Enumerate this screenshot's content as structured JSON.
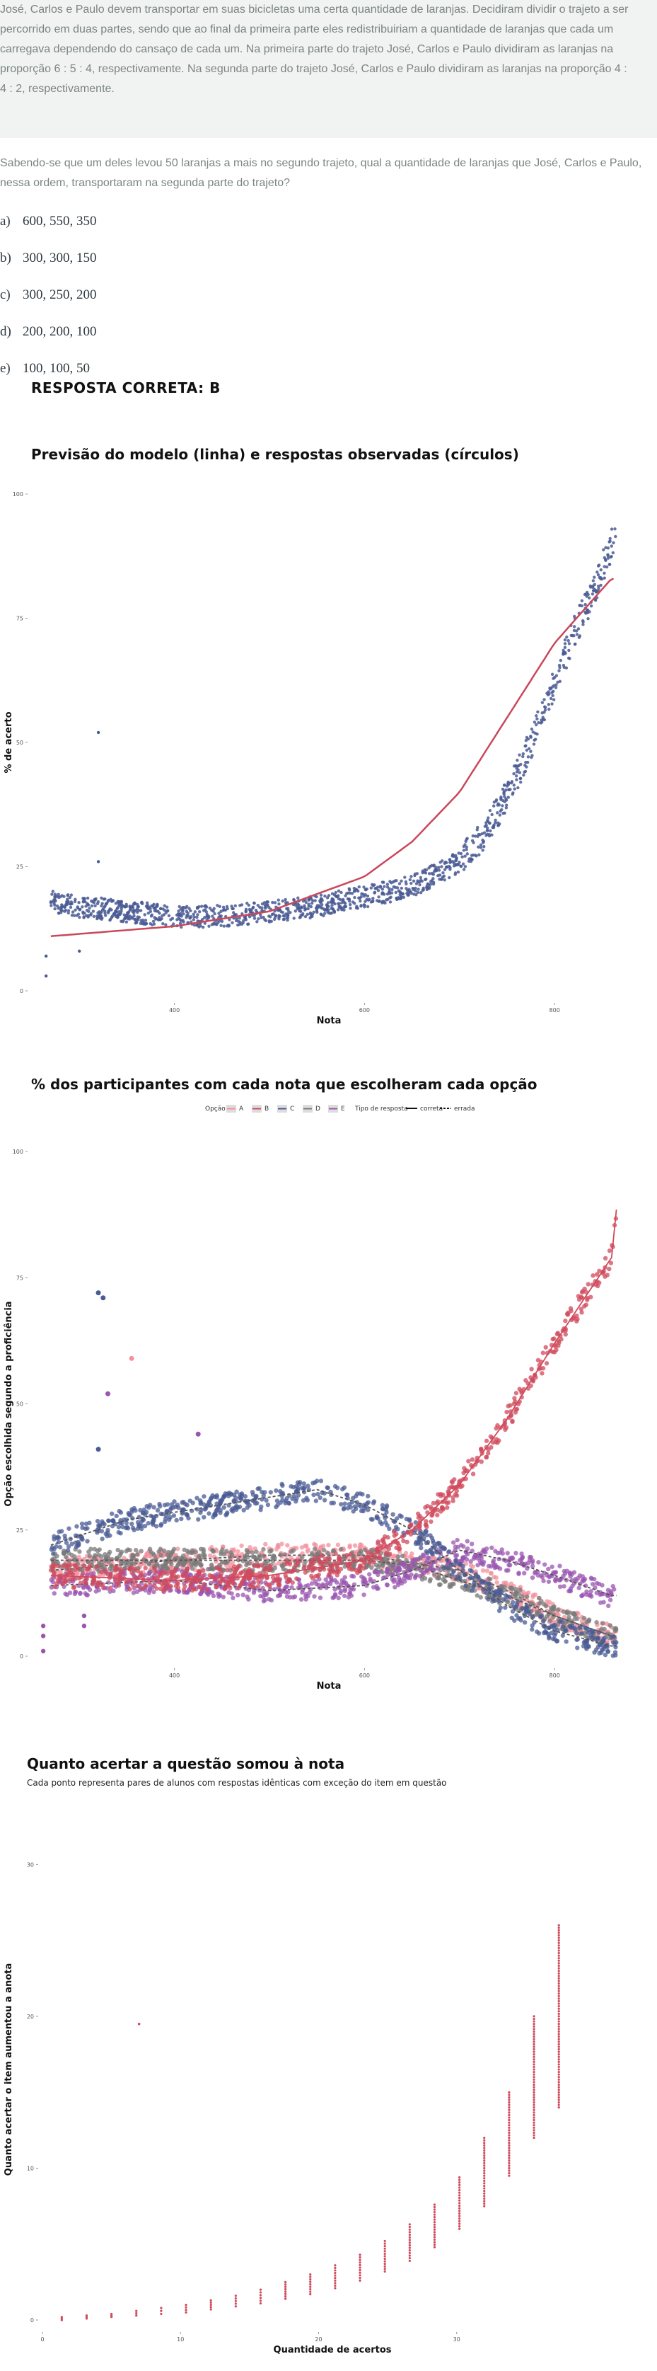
{
  "passage": "José, Carlos e Paulo devem transportar em suas bicicletas uma certa quantidade de laranjas. Decidiram dividir o trajeto a ser percorrido em duas partes, sendo que ao final da primeira parte eles redistribuiriam a quantidade de laranjas que cada um carregava dependendo do cansaço de cada um. Na primeira parte do trajeto José, Carlos e Paulo dividiram as laranjas na proporção 6 : 5 : 4, respectivamente. Na segunda parte do trajeto José, Carlos e Paulo dividiram as laranjas na proporção 4 : 4 : 2, respectivamente.",
  "question": "Sabendo-se que um deles levou 50 laranjas a mais no segundo trajeto, qual a quantidade de laranjas que José, Carlos e Paulo, nessa ordem, transportaram na segunda parte do trajeto?",
  "alternatives": [
    {
      "letter": "a)",
      "text": "600, 550, 350"
    },
    {
      "letter": "b)",
      "text": "300, 300, 150"
    },
    {
      "letter": "c)",
      "text": "300, 250, 200"
    },
    {
      "letter": "d)",
      "text": "200, 200, 100"
    },
    {
      "letter": "e)",
      "text": "100, 100, 50"
    }
  ],
  "correct_answer": "RESPOSTA CORRETA: B",
  "colors": {
    "model_line": "#c9485b",
    "observed": "#4a5b94",
    "A": "#f2909c",
    "B": "#d04a5c",
    "C": "#4a5b94",
    "D": "#7a7a7a",
    "E": "#9a55b0"
  },
  "chart_data": [
    {
      "type": "scatter",
      "title": "Previsão do modelo (linha) e respostas observadas (círculos)",
      "xlabel": "Nota",
      "ylabel": "% de acerto",
      "x_ticks": [
        "400",
        "600",
        "800"
      ],
      "y_ticks": [
        "0",
        "25",
        "50",
        "75",
        "100"
      ],
      "xlim": [
        250,
        875
      ],
      "ylim": [
        0,
        100
      ],
      "series": [
        {
          "kind": "line",
          "points": [
            [
              270,
              11
            ],
            [
              400,
              13
            ],
            [
              500,
              16
            ],
            [
              600,
              23
            ],
            [
              650,
              30
            ],
            [
              700,
              40
            ],
            [
              750,
              55
            ],
            [
              800,
              70
            ],
            [
              860,
              83
            ]
          ]
        },
        {
          "kind": "points",
          "points": [
            [
              270,
              18
            ],
            [
              300,
              17
            ],
            [
              350,
              16
            ],
            [
              400,
              15
            ],
            [
              450,
              15
            ],
            [
              500,
              16
            ],
            [
              550,
              17
            ],
            [
              600,
              19
            ],
            [
              650,
              21
            ],
            [
              700,
              26
            ],
            [
              720,
              30
            ],
            [
              740,
              36
            ],
            [
              760,
              43
            ],
            [
              780,
              52
            ],
            [
              800,
              62
            ],
            [
              820,
              72
            ],
            [
              840,
              80
            ],
            [
              860,
              90
            ],
            [
              870,
              98
            ],
            [
              320,
              52
            ],
            [
              320,
              26
            ],
            [
              265,
              3
            ],
            [
              265,
              7
            ],
            [
              300,
              8
            ]
          ]
        }
      ]
    },
    {
      "type": "scatter",
      "title": "% dos participantes com cada nota que escolheram cada opção",
      "xlabel": "Nota",
      "ylabel": "Opção escolhida segundo a proficiência",
      "x_ticks": [
        "400",
        "600",
        "800"
      ],
      "y_ticks": [
        "0",
        "25",
        "50",
        "75",
        "100"
      ],
      "xlim": [
        250,
        875
      ],
      "ylim": [
        0,
        100
      ],
      "legend": {
        "option_label": "Opção",
        "options": [
          "A",
          "B",
          "C",
          "D",
          "E"
        ],
        "type_label": "Tipo de resposta",
        "types": [
          "correta",
          "errada"
        ],
        "placement": "top"
      },
      "series": [
        {
          "name": "A",
          "points": [
            [
              270,
              17
            ],
            [
              400,
              19
            ],
            [
              500,
              20
            ],
            [
              600,
              20
            ],
            [
              700,
              17
            ],
            [
              750,
              13
            ],
            [
              800,
              8
            ],
            [
              860,
              4
            ]
          ]
        },
        {
          "name": "B",
          "points": [
            [
              270,
              16
            ],
            [
              400,
              15
            ],
            [
              500,
              16
            ],
            [
              600,
              19
            ],
            [
              650,
              25
            ],
            [
              700,
              34
            ],
            [
              750,
              47
            ],
            [
              800,
              62
            ],
            [
              860,
              79
            ],
            [
              870,
              98
            ]
          ]
        },
        {
          "name": "C",
          "points": [
            [
              270,
              22
            ],
            [
              350,
              27
            ],
            [
              450,
              30
            ],
            [
              550,
              33
            ],
            [
              600,
              30
            ],
            [
              650,
              25
            ],
            [
              700,
              17
            ],
            [
              750,
              10
            ],
            [
              800,
              5
            ],
            [
              860,
              2
            ]
          ]
        },
        {
          "name": "D",
          "points": [
            [
              270,
              19
            ],
            [
              400,
              19
            ],
            [
              500,
              19
            ],
            [
              600,
              19
            ],
            [
              650,
              18
            ],
            [
              700,
              15
            ],
            [
              750,
              12
            ],
            [
              800,
              8
            ],
            [
              860,
              4
            ]
          ]
        },
        {
          "name": "E",
          "points": [
            [
              270,
              14
            ],
            [
              400,
              15
            ],
            [
              500,
              13
            ],
            [
              600,
              14
            ],
            [
              650,
              17
            ],
            [
              700,
              21
            ],
            [
              750,
              19
            ],
            [
              800,
              16
            ],
            [
              860,
              12
            ]
          ]
        },
        {
          "name": "outliers",
          "points": [
            [
              320,
              72
            ],
            [
              325,
              71
            ],
            [
              330,
              52
            ],
            [
              355,
              59
            ],
            [
              320,
              41
            ],
            [
              425,
              44
            ]
          ]
        }
      ]
    },
    {
      "type": "scatter",
      "title": "Quanto acertar a questão somou à nota",
      "subtitle": "Cada ponto representa pares de alunos com respostas idênticas com exceção do item em questão",
      "xlabel": "Quantidade de acertos",
      "ylabel": "Quanto acertar o item aumentou a anota",
      "x_ticks": [
        "0",
        "10",
        "20",
        "30"
      ],
      "y_ticks": [
        "0",
        "10",
        "20",
        "30"
      ],
      "xlim": [
        0,
        42
      ],
      "ylim": [
        0,
        33
      ],
      "series": [
        {
          "name": "min",
          "points": [
            [
              1,
              0
            ],
            [
              3,
              0.1
            ],
            [
              5,
              0.2
            ],
            [
              7,
              0.3
            ],
            [
              9,
              0.4
            ],
            [
              11,
              0.5
            ],
            [
              13,
              0.7
            ],
            [
              15,
              0.9
            ],
            [
              17,
              1.1
            ],
            [
              19,
              1.4
            ],
            [
              21,
              1.7
            ],
            [
              23,
              2.1
            ],
            [
              25,
              2.6
            ],
            [
              27,
              3.2
            ],
            [
              29,
              3.9
            ],
            [
              31,
              4.8
            ],
            [
              33,
              6
            ],
            [
              35,
              7.5
            ],
            [
              37,
              9.5
            ],
            [
              39,
              12
            ],
            [
              41,
              14
            ]
          ]
        },
        {
          "name": "max",
          "points": [
            [
              1,
              0.2
            ],
            [
              3,
              0.3
            ],
            [
              5,
              0.4
            ],
            [
              7,
              0.6
            ],
            [
              9,
              0.8
            ],
            [
              11,
              1
            ],
            [
              13,
              1.3
            ],
            [
              15,
              1.6
            ],
            [
              17,
              2
            ],
            [
              19,
              2.5
            ],
            [
              21,
              3
            ],
            [
              23,
              3.6
            ],
            [
              25,
              4.3
            ],
            [
              27,
              5.2
            ],
            [
              29,
              6.3
            ],
            [
              31,
              7.6
            ],
            [
              33,
              9.4
            ],
            [
              35,
              12
            ],
            [
              37,
              15
            ],
            [
              39,
              20
            ],
            [
              41,
              26
            ],
            [
              43,
              33
            ]
          ]
        },
        {
          "name": "outliers",
          "points": [
            [
              7,
              19.5
            ]
          ]
        }
      ]
    }
  ]
}
